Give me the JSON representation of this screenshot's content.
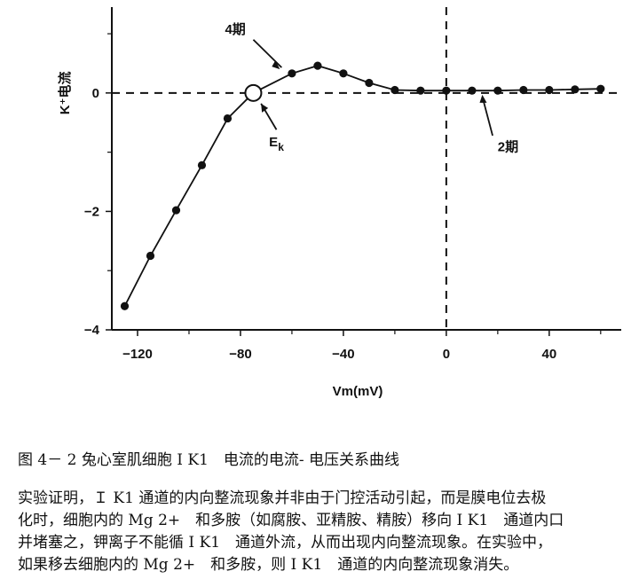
{
  "chart_data": {
    "type": "line",
    "xlabel": "Vm(mV)",
    "ylabel": "K⁺电流",
    "xlim": [
      -130,
      68
    ],
    "ylim": [
      -4,
      1.45
    ],
    "xticks": [
      -120,
      -80,
      -40,
      0,
      40
    ],
    "yticks": [
      -4,
      -2,
      0
    ],
    "xtick_labels": [
      "−120",
      "−80",
      "−40",
      "0",
      "40"
    ],
    "ytick_labels": [
      "−4",
      "−2",
      "0"
    ],
    "series": [
      {
        "x": [
          -125,
          -115,
          -105,
          -95,
          -85,
          -75,
          -60,
          -50,
          -40,
          -30,
          -20,
          -10,
          0,
          10,
          20,
          30,
          40,
          50,
          60
        ],
        "y": [
          -3.6,
          -2.75,
          -1.98,
          -1.22,
          -0.43,
          0,
          0.33,
          0.46,
          0.33,
          0.17,
          0.05,
          0.04,
          0.04,
          0.04,
          0.04,
          0.05,
          0.05,
          0.06,
          0.07
        ]
      }
    ],
    "zero_crossing_marker": {
      "x": -75,
      "y": 0
    },
    "reference_lines": {
      "horizontal_dashed_y": 0,
      "vertical_dashed_x": 0
    },
    "annotations": [
      {
        "text": "4期",
        "target_x": -64,
        "target_y": 0.34
      },
      {
        "text": "Ek",
        "target_x": -72,
        "target_y": -0.15
      },
      {
        "text": "2期",
        "target_x": 14,
        "target_y": 0.0
      }
    ],
    "grid": false
  },
  "caption": "图 4－ 2 兔心室肌细胞 I K1　电流的电流- 电压关系曲线",
  "body_lines": [
    "实验证明，Ｉ K1 通道的内向整流现象并非由于门控活动引起，而是膜电位去极",
    "化时，细胞内的 Mg 2+　和多胺（如腐胺、亚精胺、精胺）移向 I K1　通道内口",
    "并堵塞之，钾离子不能循 I K1　通道外流，从而出现内向整流现象。在实验中，",
    "如果移去细胞内的 Mg 2+　和多胺，则 I K1　通道的内向整流现象消失。"
  ]
}
